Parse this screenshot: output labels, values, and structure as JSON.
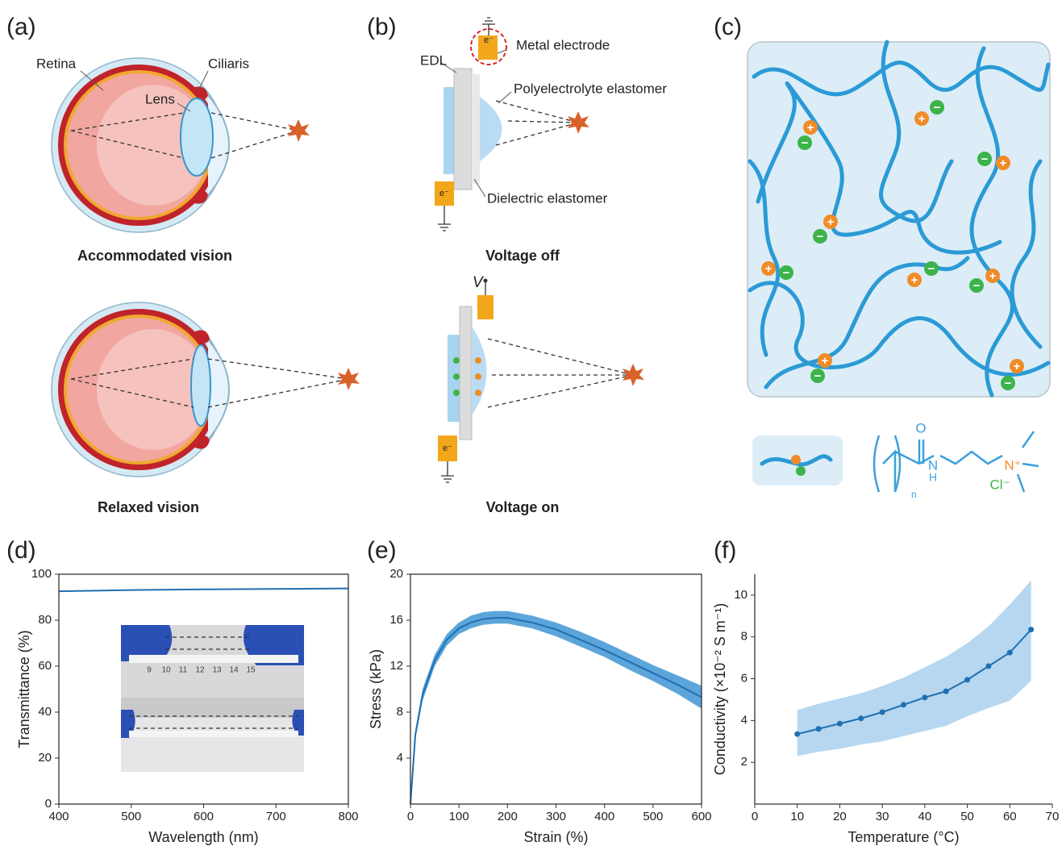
{
  "panel_a": {
    "label": "(a)",
    "retina": "Retina",
    "ciliaris": "Ciliaris",
    "lens": "Lens",
    "top_caption": "Accommodated vision",
    "bottom_caption": "Relaxed vision"
  },
  "panel_b": {
    "label": "(b)",
    "metal_electrode": "Metal electrode",
    "edl": "EDL",
    "polyelectrolyte": "Polyelectrolyte elastomer",
    "dielectric": "Dielectric elastomer",
    "top_caption": "Voltage off",
    "voltage": "V",
    "bottom_caption": "Voltage on",
    "electron": "e⁻"
  },
  "panel_c": {
    "label": "(c)",
    "plus": "+",
    "minus": "−",
    "oxygen": "O",
    "nitrogen": "N",
    "hydrogen": "H",
    "repeat": "n",
    "ammonium": "N⁺",
    "chloride": "Cl⁻"
  },
  "chart_data": [
    {
      "type": "line",
      "label": "(d)",
      "x_label": "Wavelength (nm)",
      "y_label": "Transmittance (%)",
      "box": true,
      "x": [
        400,
        500,
        600,
        700,
        800
      ],
      "series": [
        {
          "color": "#1f6fb2",
          "values": [
            92.6,
            93.1,
            93.4,
            93.6,
            93.8
          ]
        }
      ],
      "xlim": [
        400,
        800
      ],
      "ylim": [
        0,
        100
      ],
      "xticks": [
        400,
        500,
        600,
        700,
        800
      ],
      "yticks": [
        0,
        20,
        40,
        60,
        80,
        100
      ],
      "inset_ruler_labels": [
        "9",
        "10",
        "11",
        "12",
        "13",
        "14",
        "15"
      ]
    },
    {
      "type": "line",
      "label": "(e)",
      "x_label": "Strain (%)",
      "y_label": "Stress (kPa)",
      "box": true,
      "x": [
        0,
        10,
        25,
        50,
        75,
        100,
        125,
        150,
        175,
        200,
        250,
        300,
        350,
        400,
        450,
        500,
        550,
        600
      ],
      "series": [
        {
          "color": "#1f6fb2",
          "values": [
            0,
            6,
            9.5,
            12.5,
            14.3,
            15.3,
            15.8,
            16.1,
            16.2,
            16.2,
            15.8,
            15.2,
            14.3,
            13.4,
            12.4,
            11.4,
            10.4,
            9.3
          ],
          "band": {
            "color": "#3f95d3",
            "lower": [
              0,
              5.6,
              9.0,
              12.0,
              13.8,
              14.8,
              15.3,
              15.6,
              15.7,
              15.7,
              15.3,
              14.6,
              13.7,
              12.8,
              11.7,
              10.7,
              9.6,
              8.3
            ],
            "upper": [
              0,
              6.4,
              10.0,
              13.0,
              14.8,
              15.8,
              16.4,
              16.7,
              16.8,
              16.8,
              16.4,
              15.8,
              15.0,
              14.1,
              13.1,
              12.1,
              11.2,
              10.3
            ]
          }
        }
      ],
      "xlim": [
        0,
        600
      ],
      "ylim": [
        0,
        20
      ],
      "xticks": [
        0,
        100,
        200,
        300,
        400,
        500,
        600
      ],
      "yticks": [
        4,
        8,
        12,
        16,
        20
      ]
    },
    {
      "type": "line",
      "label": "(f)",
      "x_label": "Temperature (°C)",
      "y_label": "Conductivity (×10⁻² S m⁻¹)",
      "box": false,
      "markers": true,
      "x": [
        10,
        15,
        20,
        25,
        30,
        35,
        40,
        45,
        50,
        55,
        60,
        65
      ],
      "series": [
        {
          "color": "#1f6fb2",
          "values": [
            3.35,
            3.6,
            3.85,
            4.1,
            4.4,
            4.75,
            5.1,
            5.4,
            5.95,
            6.6,
            7.25,
            8.35
          ],
          "band": {
            "color": "#a9d0ec",
            "lower": [
              2.3,
              2.5,
              2.65,
              2.85,
              3.0,
              3.25,
              3.5,
              3.75,
              4.2,
              4.6,
              4.95,
              5.9
            ],
            "upper": [
              4.5,
              4.8,
              5.05,
              5.3,
              5.65,
              6.05,
              6.55,
              7.05,
              7.7,
              8.5,
              9.55,
              10.7
            ]
          }
        }
      ],
      "xlim": [
        0,
        70
      ],
      "ylim": [
        0,
        11
      ],
      "xticks": [
        0,
        10,
        20,
        30,
        40,
        50,
        60,
        70
      ],
      "yticks": [
        2,
        4,
        6,
        8,
        10
      ]
    }
  ]
}
